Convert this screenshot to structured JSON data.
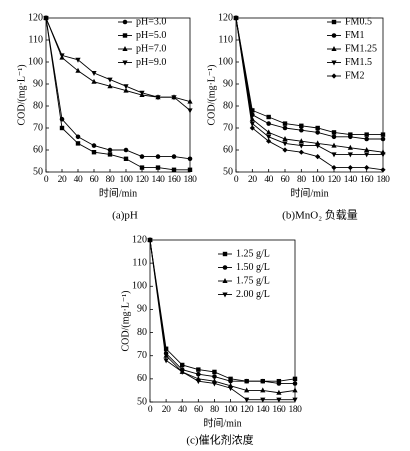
{
  "chart_data": [
    {
      "type": "line",
      "title": "(a)pH",
      "xlabel": "时间/min",
      "ylabel": "COD/(mg·L⁻¹)",
      "x": [
        0,
        20,
        40,
        60,
        80,
        100,
        120,
        140,
        160,
        180
      ],
      "xlim": [
        0,
        180
      ],
      "xticks": [
        0,
        20,
        40,
        60,
        80,
        100,
        120,
        140,
        160,
        180
      ],
      "ylim": [
        50,
        120
      ],
      "yticks": [
        50,
        60,
        70,
        80,
        90,
        100,
        110,
        120
      ],
      "legend": "upper-right",
      "series": [
        {
          "name": "pH=3.0",
          "color": "#000000",
          "marker": "circle",
          "values": [
            120,
            74,
            66,
            62,
            60,
            60,
            57,
            57,
            57,
            56
          ]
        },
        {
          "name": "pH=5.0",
          "color": "#000000",
          "marker": "square",
          "values": [
            120,
            70,
            63,
            59,
            58,
            56,
            52,
            52,
            51,
            51
          ]
        },
        {
          "name": "pH=7.0",
          "color": "#000000",
          "marker": "triangle-up",
          "values": [
            120,
            102,
            96,
            91,
            89,
            87,
            85,
            84,
            84,
            82
          ]
        },
        {
          "name": "pH=9.0",
          "color": "#000000",
          "marker": "triangle-down",
          "values": [
            120,
            103,
            101,
            95,
            92,
            89,
            86,
            84,
            84,
            78
          ]
        }
      ]
    },
    {
      "type": "line",
      "title": "(b)MnO₂ 负载量",
      "xlabel": "时间/min",
      "ylabel": "COD/(mg·L⁻¹)",
      "x": [
        0,
        20,
        40,
        60,
        80,
        100,
        120,
        140,
        160,
        180
      ],
      "xlim": [
        0,
        180
      ],
      "xticks": [
        0,
        20,
        40,
        60,
        80,
        100,
        120,
        140,
        160,
        180
      ],
      "ylim": [
        50,
        120
      ],
      "yticks": [
        50,
        60,
        70,
        80,
        90,
        100,
        110,
        120
      ],
      "legend": "upper-right",
      "series": [
        {
          "name": "FM0.5",
          "color": "#000000",
          "marker": "square",
          "values": [
            120,
            78,
            75,
            72,
            71,
            70,
            68,
            67,
            67,
            67
          ]
        },
        {
          "name": "FM1",
          "color": "#000000",
          "marker": "circle",
          "values": [
            120,
            76,
            72,
            70,
            69,
            68,
            66,
            66,
            65,
            65
          ]
        },
        {
          "name": "FM1.25",
          "color": "#000000",
          "marker": "triangle-up",
          "values": [
            120,
            74,
            68,
            65,
            64,
            63,
            62,
            61,
            60,
            59
          ]
        },
        {
          "name": "FM1.5",
          "color": "#000000",
          "marker": "triangle-down",
          "values": [
            120,
            72,
            66,
            63,
            62,
            62,
            58,
            58,
            58,
            58
          ]
        },
        {
          "name": "FM2",
          "color": "#000000",
          "marker": "diamond",
          "values": [
            120,
            70,
            64,
            60,
            59,
            57,
            52,
            52,
            52,
            51
          ]
        }
      ]
    },
    {
      "type": "line",
      "title": "(c)催化剂浓度",
      "xlabel": "时间/min",
      "ylabel": "COD/(mg·L⁻¹)",
      "x": [
        0,
        20,
        40,
        60,
        80,
        100,
        120,
        140,
        160,
        180
      ],
      "xlim": [
        0,
        180
      ],
      "xticks": [
        0,
        20,
        40,
        60,
        80,
        100,
        120,
        140,
        160,
        180
      ],
      "ylim": [
        50,
        120
      ],
      "yticks": [
        50,
        60,
        70,
        80,
        90,
        100,
        110,
        120
      ],
      "legend": "above-right",
      "series": [
        {
          "name": "1.25 g/L",
          "color": "#000000",
          "marker": "square",
          "values": [
            120,
            73,
            66,
            64,
            63,
            60,
            59,
            59,
            59,
            60
          ]
        },
        {
          "name": "1.50 g/L",
          "color": "#000000",
          "marker": "circle",
          "values": [
            120,
            71,
            64,
            62,
            61,
            59,
            59,
            59,
            58,
            58
          ]
        },
        {
          "name": "1.75 g/L",
          "color": "#000000",
          "marker": "triangle-up",
          "values": [
            120,
            70,
            63,
            60,
            59,
            57,
            55,
            55,
            54,
            55
          ]
        },
        {
          "name": "2.00 g/L",
          "color": "#000000",
          "marker": "triangle-down",
          "values": [
            120,
            68,
            63,
            59,
            58,
            56,
            51,
            51,
            51,
            51
          ]
        }
      ]
    }
  ]
}
